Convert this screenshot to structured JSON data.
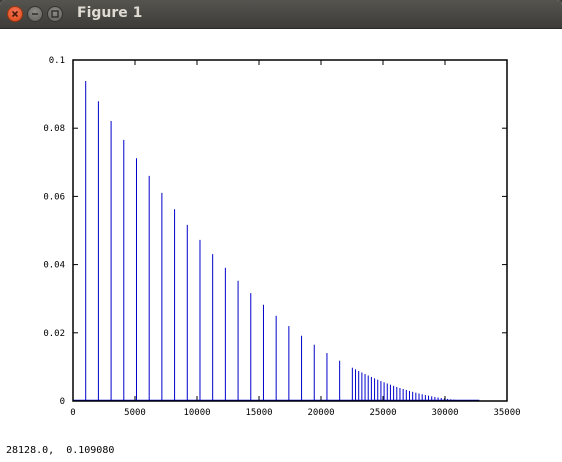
{
  "window": {
    "title": "Figure 1"
  },
  "status": {
    "coordinates": "28128.0,  0.109080"
  },
  "chart_data": {
    "type": "stem",
    "xlim": [
      0,
      35000
    ],
    "ylim": [
      0,
      0.1
    ],
    "x_ticks": [
      "0",
      "5000",
      "10000",
      "15000",
      "20000",
      "25000",
      "30000",
      "35000"
    ],
    "y_ticks": [
      "0",
      "0.02",
      "0.04",
      "0.06",
      "0.08",
      "0.1"
    ],
    "grid": false,
    "color": "#0000cc",
    "x_start": 0,
    "x_end": 32767,
    "y_start": 0.1,
    "shape": "quadratic-decay",
    "sparse_spacing": 1024,
    "sparse_until": 22528,
    "dense_spacing": 256
  }
}
